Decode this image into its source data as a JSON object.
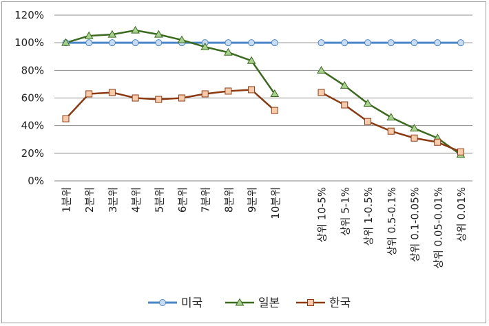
{
  "chart_data": {
    "type": "line",
    "title": "",
    "xlabel": "",
    "ylabel": "",
    "ylim": [
      0,
      120
    ],
    "y_ticks": [
      "0%",
      "20%",
      "40%",
      "60%",
      "80%",
      "100%",
      "120%"
    ],
    "grid": true,
    "legend_position": "bottom",
    "groups": [
      {
        "categories": [
          "1분위",
          "2분위",
          "3분위",
          "4분위",
          "5분위",
          "6분위",
          "7분위",
          "8분위",
          "9분위",
          "10분위"
        ],
        "series": [
          {
            "name": "미국",
            "values": [
              100,
              100,
              100,
              100,
              100,
              100,
              100,
              100,
              100,
              100
            ]
          },
          {
            "name": "일본",
            "values": [
              100,
              105,
              106,
              109,
              106,
              102,
              97,
              93,
              87,
              63
            ]
          },
          {
            "name": "한국",
            "values": [
              45,
              63,
              64,
              60,
              59,
              60,
              63,
              65,
              66,
              51
            ]
          }
        ]
      },
      {
        "categories": [
          "상위 10-5%",
          "상위 5-1%",
          "상위 1-0.5%",
          "상위 0.5-0.1%",
          "상위 0.1-0.05%",
          "상위 0.05-0.01%",
          "상위 0.01%"
        ],
        "series": [
          {
            "name": "미국",
            "values": [
              100,
              100,
              100,
              100,
              100,
              100,
              100
            ]
          },
          {
            "name": "일본",
            "values": [
              80,
              69,
              56,
              46,
              38,
              31,
              19
            ]
          },
          {
            "name": "한국",
            "values": [
              64,
              55,
              43,
              36,
              31,
              28,
              21
            ]
          }
        ]
      }
    ],
    "legend": [
      "미국",
      "일본",
      "한국"
    ],
    "colors": {
      "미국": "#4a86c8",
      "일본": "#3a6a1e",
      "한국": "#8b3a12"
    },
    "marker_fill": {
      "미국": "#c9dcf2",
      "일본": "#a9d18e",
      "한국": "#f8cbad"
    },
    "markers": {
      "미국": "circle",
      "일본": "triangle",
      "한국": "square"
    }
  }
}
